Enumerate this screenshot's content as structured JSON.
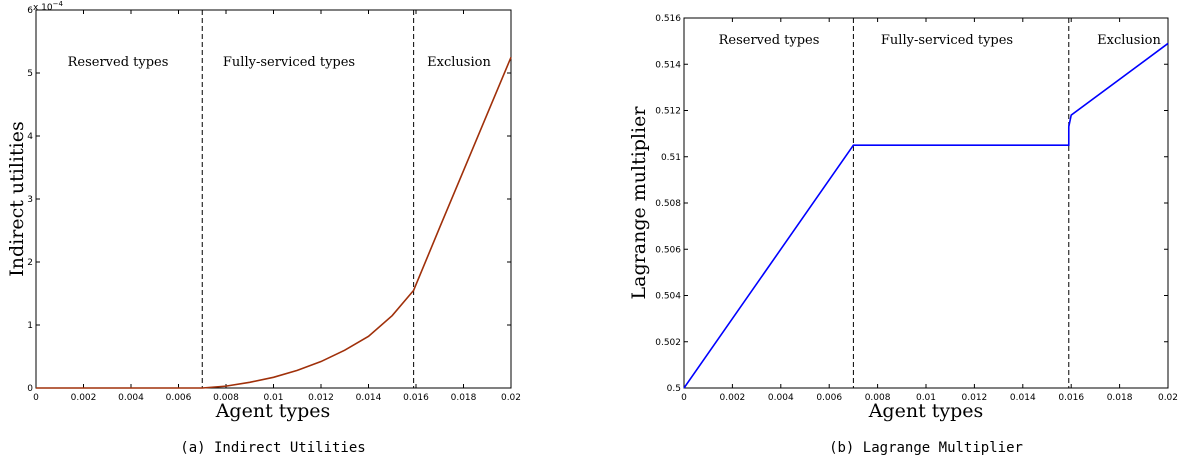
{
  "chart_data": [
    {
      "type": "line",
      "caption": "(a) Indirect Utilities",
      "xlabel": "Agent types",
      "ylabel": "Indirect utilities",
      "y_exponent_label": "x 10",
      "y_exponent_power": "−4",
      "xlim": [
        0,
        0.02
      ],
      "ylim": [
        0,
        6
      ],
      "x_ticks": [
        0,
        0.002,
        0.004,
        0.006,
        0.008,
        0.01,
        0.012,
        0.014,
        0.016,
        0.018,
        0.02
      ],
      "x_tick_labels": [
        "0",
        "0.002",
        "0.004",
        "0.006",
        "0.008",
        "0.01",
        "0.012",
        "0.014",
        "0.016",
        "0.018",
        "0.02"
      ],
      "y_ticks": [
        0,
        1,
        2,
        3,
        4,
        5,
        6
      ],
      "y_tick_labels": [
        "0",
        "1",
        "2",
        "3",
        "4",
        "5",
        "6"
      ],
      "vlines": [
        0.007,
        0.0159
      ],
      "regions": [
        "Reserved types",
        "Fully-serviced types",
        "Exclusion"
      ],
      "line_color": "#a0300a",
      "series": [
        {
          "x": [
            0,
            0.007,
            0.008,
            0.009,
            0.01,
            0.011,
            0.012,
            0.013,
            0.014,
            0.015,
            0.0159,
            0.017,
            0.018,
            0.019,
            0.02
          ],
          "values": [
            0,
            0,
            0.03,
            0.09,
            0.17,
            0.28,
            0.42,
            0.6,
            0.82,
            1.15,
            1.55,
            2.55,
            3.45,
            4.35,
            5.25
          ]
        }
      ]
    },
    {
      "type": "line",
      "caption": "(b) Lagrange Multiplier",
      "xlabel": "Agent types",
      "ylabel": "Lagrange multiplier",
      "xlim": [
        0,
        0.02
      ],
      "ylim": [
        0.5,
        0.516
      ],
      "x_ticks": [
        0,
        0.002,
        0.004,
        0.006,
        0.008,
        0.01,
        0.012,
        0.014,
        0.016,
        0.018,
        0.02
      ],
      "x_tick_labels": [
        "0",
        "0.002",
        "0.004",
        "0.006",
        "0.008",
        "0.01",
        "0.012",
        "0.014",
        "0.016",
        "0.018",
        "0.02"
      ],
      "y_ticks": [
        0.5,
        0.502,
        0.504,
        0.506,
        0.508,
        0.51,
        0.512,
        0.514,
        0.516
      ],
      "y_tick_labels": [
        "0.5",
        "0.502",
        "0.504",
        "0.506",
        "0.508",
        "0.51",
        "0.512",
        "0.514",
        "0.516"
      ],
      "vlines": [
        0.007,
        0.0159
      ],
      "regions": [
        "Reserved types",
        "Fully-serviced types",
        "Exclusion"
      ],
      "line_color": "#0000ff",
      "series": [
        {
          "x": [
            0,
            0.007,
            0.0159,
            0.0159,
            0.016,
            0.02
          ],
          "values": [
            0.5,
            0.5105,
            0.5105,
            0.5113,
            0.5118,
            0.5149
          ]
        }
      ]
    }
  ]
}
